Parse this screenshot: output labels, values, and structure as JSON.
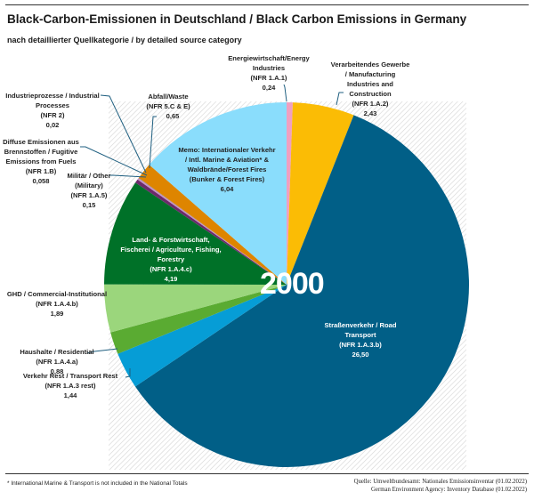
{
  "header": {
    "title": "Black-Carbon-Emissionen in Deutschland / Black Carbon Emissions in Germany",
    "subtitle": "nach detaillierter Quellkategorie / by detailed source category"
  },
  "year_label": "2000",
  "footer": {
    "footnote": "* International Marine & Transport is not included in the National Totals",
    "source_line1": "Quelle: Umweltbundesamt: Nationales Emissionsinventar (01.02.2022)",
    "source_line2": "German Environment Agency: Inventory Database (01.02.2022)"
  },
  "chart_data": {
    "type": "pie",
    "title": "Black-Carbon-Emissionen in Deutschland / Black Carbon Emissions in Germany",
    "subtitle": "nach detaillierter Quellkategorie / by detailed source category",
    "annotation": "2000",
    "unit": "kt",
    "start_angle": "12 o'clock, clockwise",
    "slices": [
      {
        "name": "Energiewirtschaft/Energy Industries",
        "code": "NFR 1.A.1",
        "value": 0.24,
        "value_label": "0,24",
        "color": "#f0a0c0"
      },
      {
        "name": "Verarbeitendes Gewerbe / Manufacturing Industries and Construction",
        "code": "NFR 1.A.2",
        "value": 2.43,
        "value_label": "2,43",
        "color": "#fbbc05"
      },
      {
        "name": "Straßenverkehr / Road Transport",
        "code": "NFR 1.A.3.b",
        "value": 26.5,
        "value_label": "26,50",
        "color": "#015f87"
      },
      {
        "name": "Verkehr Rest / Transport Rest",
        "code": "NFR 1.A.3 rest",
        "value": 1.44,
        "value_label": "1,44",
        "color": "#069dd6"
      },
      {
        "name": "Haushalte / Residential",
        "code": "NFR 1.A.4.a",
        "value": 0.88,
        "value_label": "0,88",
        "color": "#5aab32"
      },
      {
        "name": "GHD / Commercial-Institutional",
        "code": "NFR 1.A.4.b",
        "value": 1.89,
        "value_label": "1,89",
        "color": "#9bd67c"
      },
      {
        "name": "Land- & Forstwirtschaft, Fischerei / Agriculture, Fishing, Forestry",
        "code": "NFR 1.A.4.c",
        "value": 4.19,
        "value_label": "4,19",
        "color": "#007128"
      },
      {
        "name": "Militär / Other (Military)",
        "code": "NFR 1.A.5",
        "value": 0.15,
        "value_label": "0,15",
        "color": "#6b2a6b"
      },
      {
        "name": "Diffuse Emissionen aus Brennstoffen / Fugitive Emissions from Fuels",
        "code": "NFR 1.B",
        "value": 0.058,
        "value_label": "0,058",
        "color": "#c890c8"
      },
      {
        "name": "Industrieprozesse / Industrial Processes",
        "code": "NFR 2",
        "value": 0.02,
        "value_label": "0,02",
        "color": "#8a8a8a"
      },
      {
        "name": "Abfall/Waste",
        "code": "NFR 5.C & E",
        "value": 0.65,
        "value_label": "0,65",
        "color": "#de8500"
      },
      {
        "name": "Memo: Internationaler Verkehr / Intl. Marine & Aviation* & Waldbrände/Forest Fires (Bunker & Forest Fires)",
        "code": "",
        "value": 6.04,
        "value_label": "6,04",
        "color": "#8addfc"
      }
    ]
  },
  "labels": {
    "energy": {
      "l1": "Energiewirtschaft/Energy",
      "l2": "Industries",
      "l3": "(NFR 1.A.1)",
      "l4": "0,24"
    },
    "manufacturing": {
      "l1": "Verarbeitendes Gewerbe",
      "l2": "/ Manufacturing",
      "l3": "Industries and",
      "l4": "Construction",
      "l5": "(NFR 1.A.2)",
      "l6": "2,43"
    },
    "road": {
      "l1": "Straßenverkehr / Road",
      "l2": "Transport",
      "l3": "(NFR 1.A.3.b)",
      "l4": "26,50"
    },
    "transport_rest": {
      "l1": "Verkehr Rest / Transport Rest",
      "l2": "(NFR 1.A.3 rest)",
      "l3": "1,44"
    },
    "residential": {
      "l1": "Haushalte / Residential",
      "l2": "(NFR 1.A.4.a)",
      "l3": "0,88"
    },
    "commercial": {
      "l1": "GHD / Commercial-Institutional",
      "l2": "(NFR 1.A.4.b)",
      "l3": "1,89"
    },
    "agriculture": {
      "l1": "Land- & Forstwirtschaft,",
      "l2": "Fischerei / Agriculture, Fishing,",
      "l3": "Forestry",
      "l4": "(NFR 1.A.4.c)",
      "l5": "4,19"
    },
    "military": {
      "l1": "Militär / Other",
      "l2": "(Military)",
      "l3": "(NFR 1.A.5)",
      "l4": "0,15"
    },
    "fugitive": {
      "l1": "Diffuse Emissionen aus",
      "l2": "Brennstoffen / Fugitive",
      "l3": "Emissions from Fuels",
      "l4": "(NFR 1.B)",
      "l5": "0,058"
    },
    "industrial": {
      "l1": "Industrieprozesse / Industrial",
      "l2": "Processes",
      "l3": "(NFR 2)",
      "l4": "0,02"
    },
    "waste": {
      "l1": "Abfall/Waste",
      "l2": "(NFR 5.C & E)",
      "l3": "0,65"
    },
    "memo": {
      "l1": "Memo: Internationaler Verkehr",
      "l2": "/ Intl. Marine & Aviation* &",
      "l3": "Waldbrände/Forest Fires",
      "l4": "(Bunker & Forest Fires)",
      "l5": "6,04"
    }
  }
}
